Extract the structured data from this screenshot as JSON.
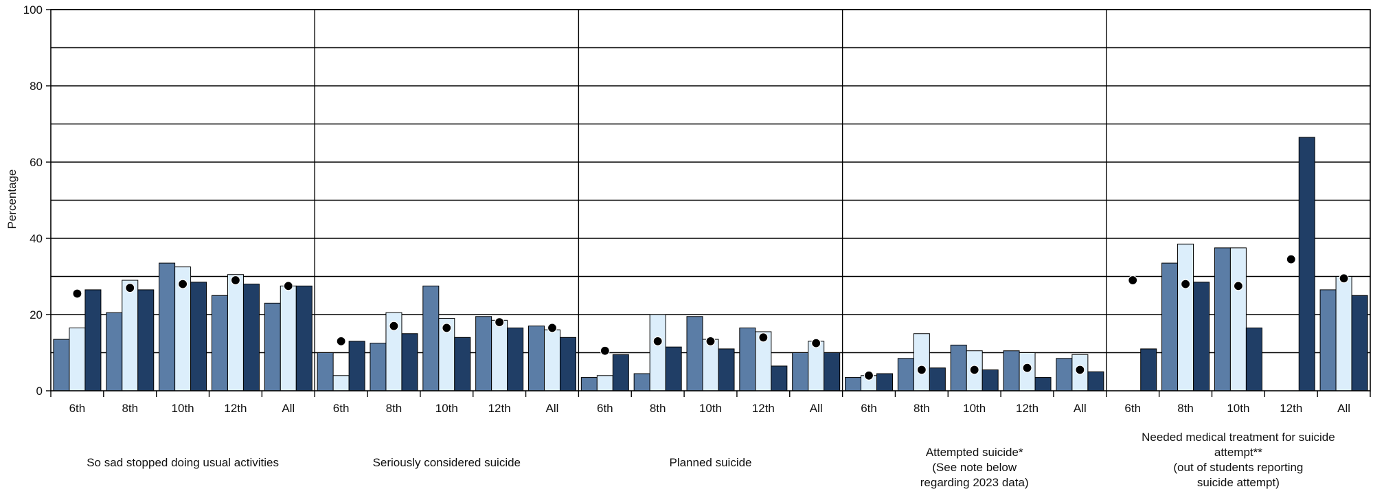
{
  "chart_data": {
    "type": "bar",
    "ylabel": "Percentage",
    "ylim": [
      0,
      100
    ],
    "yticks": [
      "0",
      "20",
      "40",
      "60",
      "80",
      "100"
    ],
    "grid": true,
    "grid_step": 10,
    "grades": [
      "6th",
      "8th",
      "10th",
      "12th",
      "All"
    ],
    "series_colors": [
      "#5B7DA6",
      "#DCEEFB",
      "#203E66"
    ],
    "marker_color": "#000000",
    "groups": [
      {
        "label": [
          "So sad stopped doing usual activities"
        ],
        "values": [
          [
            13.5,
            16.5,
            26.5
          ],
          [
            20.5,
            29,
            26.5
          ],
          [
            33.5,
            32.5,
            28.5
          ],
          [
            25,
            30.5,
            28
          ],
          [
            23,
            27.5,
            27.5
          ]
        ],
        "markers": [
          25.5,
          27,
          28,
          29,
          27.5
        ]
      },
      {
        "label": [
          "Seriously considered suicide"
        ],
        "values": [
          [
            10,
            4,
            13
          ],
          [
            12.5,
            20.5,
            15
          ],
          [
            27.5,
            19,
            14
          ],
          [
            19.5,
            18.5,
            16.5
          ],
          [
            17,
            16,
            14
          ]
        ],
        "markers": [
          13,
          17,
          16.5,
          18,
          16.5
        ]
      },
      {
        "label": [
          "Planned suicide"
        ],
        "values": [
          [
            3.5,
            4,
            9.5
          ],
          [
            4.5,
            20,
            11.5
          ],
          [
            19.5,
            13.5,
            11
          ],
          [
            16.5,
            15.5,
            6.5
          ],
          [
            10,
            13,
            10
          ]
        ],
        "markers": [
          10.5,
          13,
          13,
          14,
          12.5
        ]
      },
      {
        "label": [
          "Attempted suicide*",
          "(See note below",
          "regarding 2023 data)"
        ],
        "values": [
          [
            3.5,
            4,
            4.5
          ],
          [
            8.5,
            15,
            6
          ],
          [
            12,
            10.5,
            5.5
          ],
          [
            10.5,
            10,
            3.5
          ],
          [
            8.5,
            9.5,
            5
          ]
        ],
        "markers": [
          4,
          5.5,
          5.5,
          6,
          5.5
        ]
      },
      {
        "label": [
          "Needed medical treatment for suicide",
          "attempt**",
          "(out of students reporting",
          "suicide attempt)"
        ],
        "values": [
          [
            0,
            0,
            11
          ],
          [
            33.5,
            38.5,
            28.5
          ],
          [
            37.5,
            37.5,
            16.5
          ],
          [
            0,
            0,
            66.5
          ],
          [
            26.5,
            30,
            25
          ]
        ],
        "markers": [
          29,
          28,
          27.5,
          34.5,
          29.5
        ]
      }
    ]
  }
}
